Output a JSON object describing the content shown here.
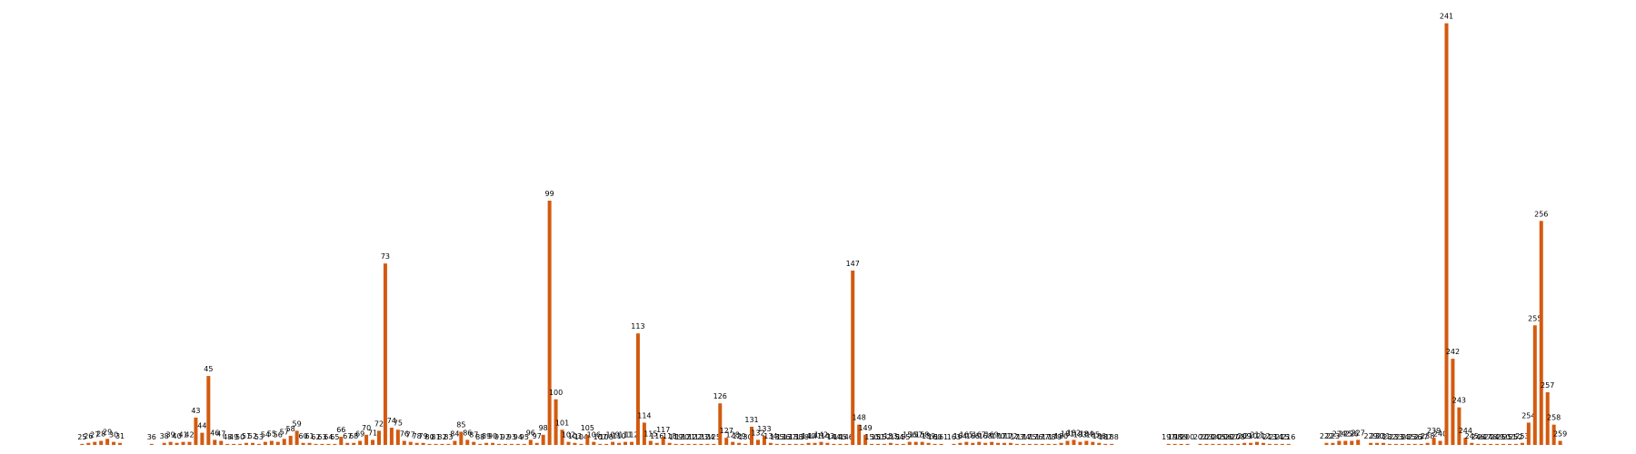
{
  "chart_data": {
    "type": "bar",
    "color": "#d35a0f",
    "x": [
      25,
      26,
      27,
      28,
      29,
      30,
      31,
      36,
      38,
      39,
      40,
      41,
      42,
      43,
      44,
      45,
      46,
      47,
      48,
      49,
      50,
      51,
      52,
      53,
      54,
      55,
      56,
      57,
      58,
      59,
      60,
      61,
      62,
      63,
      64,
      65,
      66,
      67,
      68,
      69,
      70,
      71,
      72,
      73,
      74,
      75,
      76,
      77,
      78,
      79,
      80,
      81,
      82,
      83,
      84,
      85,
      86,
      87,
      88,
      89,
      90,
      91,
      92,
      93,
      94,
      95,
      96,
      97,
      98,
      99,
      100,
      101,
      102,
      103,
      104,
      105,
      106,
      107,
      108,
      109,
      110,
      111,
      112,
      113,
      114,
      115,
      116,
      117,
      118,
      119,
      120,
      121,
      122,
      123,
      124,
      125,
      126,
      127,
      128,
      129,
      130,
      131,
      132,
      133,
      134,
      135,
      136,
      137,
      138,
      139,
      140,
      141,
      142,
      143,
      144,
      145,
      146,
      147,
      148,
      149,
      150,
      151,
      152,
      153,
      154,
      155,
      156,
      157,
      158,
      159,
      160,
      161,
      163,
      164,
      165,
      166,
      167,
      168,
      169,
      170,
      171,
      172,
      173,
      174,
      175,
      176,
      177,
      178,
      179,
      180,
      181,
      182,
      183,
      184,
      185,
      186,
      187,
      188,
      197,
      198,
      199,
      200,
      202,
      203,
      204,
      205,
      206,
      207,
      208,
      209,
      210,
      211,
      212,
      213,
      214,
      215,
      216,
      222,
      223,
      224,
      225,
      226,
      227,
      229,
      230,
      231,
      232,
      233,
      234,
      235,
      236,
      237,
      238,
      239,
      240,
      241,
      242,
      243,
      244,
      245,
      246,
      247,
      248,
      249,
      250,
      251,
      252,
      253,
      254,
      255,
      256,
      257,
      258,
      259
    ],
    "values": [
      1,
      2,
      3,
      4,
      6,
      3,
      2,
      1,
      2,
      3,
      2,
      3,
      3,
      27,
      12,
      68,
      5,
      4,
      1,
      1,
      1,
      2,
      2,
      1,
      3,
      4,
      3,
      6,
      9,
      14,
      2,
      2,
      1,
      1,
      1,
      1,
      8,
      2,
      2,
      4,
      10,
      5,
      14,
      179,
      17,
      15,
      4,
      3,
      2,
      2,
      1,
      1,
      1,
      1,
      4,
      13,
      5,
      3,
      1,
      2,
      2,
      1,
      1,
      1,
      1,
      1,
      5,
      2,
      10,
      241,
      45,
      15,
      3,
      2,
      1,
      10,
      3,
      1,
      1,
      3,
      2,
      3,
      3,
      110,
      22,
      4,
      2,
      8,
      2,
      1,
      1,
      1,
      1,
      1,
      1,
      1,
      41,
      7,
      3,
      2,
      1,
      18,
      5,
      9,
      2,
      1,
      1,
      1,
      1,
      1,
      2,
      2,
      3,
      2,
      1,
      1,
      1,
      172,
      20,
      10,
      1,
      1,
      1,
      2,
      1,
      1,
      3,
      3,
      3,
      2,
      1,
      1,
      1,
      2,
      3,
      2,
      3,
      2,
      3,
      2,
      2,
      2,
      1,
      1,
      1,
      1,
      1,
      1,
      1,
      2,
      4,
      5,
      3,
      4,
      3,
      2,
      1,
      1,
      1,
      1,
      1,
      1,
      1,
      1,
      1,
      1,
      1,
      1,
      1,
      2,
      2,
      3,
      2,
      1,
      1,
      1,
      1,
      2,
      2,
      4,
      4,
      4,
      5,
      2,
      2,
      2,
      1,
      1,
      1,
      1,
      1,
      1,
      2,
      7,
      4,
      416,
      85,
      37,
      7,
      2,
      1,
      1,
      1,
      1,
      1,
      1,
      1,
      2,
      22,
      118,
      221,
      52,
      20,
      4
    ],
    "xlim": [
      12,
      271
    ],
    "ylim": [
      0,
      430
    ]
  }
}
